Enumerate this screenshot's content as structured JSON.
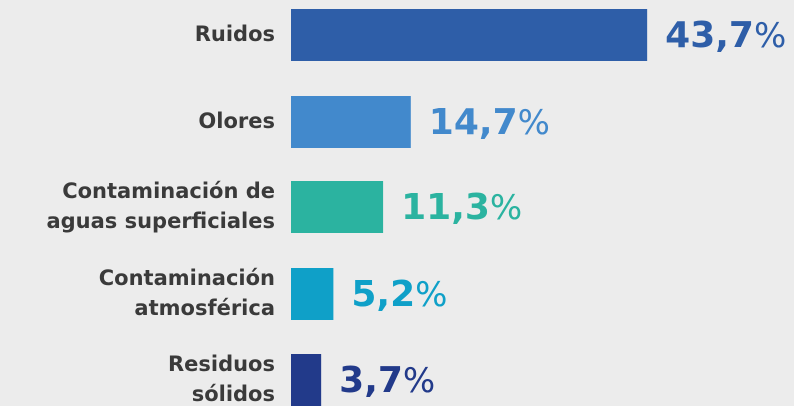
{
  "chart_data": {
    "type": "bar",
    "orientation": "horizontal",
    "categories": [
      "Ruidos",
      "Olores",
      "Contaminación de\naguas superficiales",
      "Contaminación\natmosférica",
      "Residuos\nsólidos"
    ],
    "values": [
      43.7,
      14.7,
      11.3,
      5.2,
      3.7
    ],
    "value_labels": [
      "43,7",
      "14,7",
      "11,3",
      "5,2",
      "3,7"
    ],
    "unit": "%",
    "colors": [
      "#2e5ea8",
      "#4289cc",
      "#2bb3a0",
      "#0fa0c8",
      "#223a8a"
    ]
  }
}
